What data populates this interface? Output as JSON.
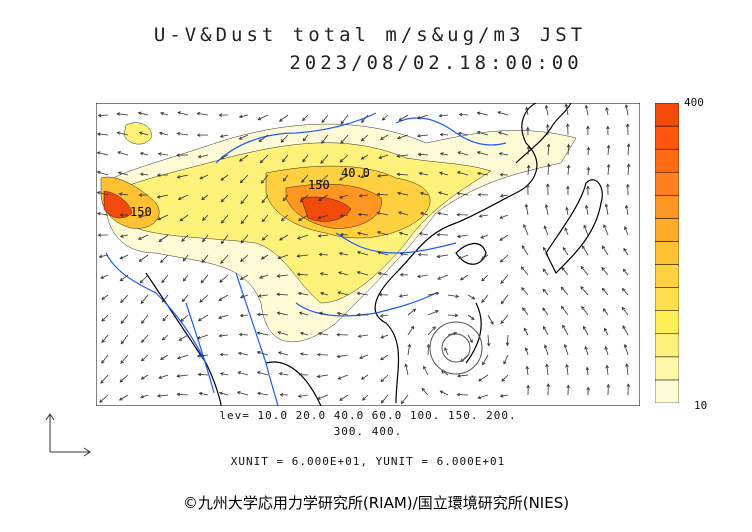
{
  "title_line1": "U-V&Dust total m/s&ug/m3 JST",
  "title_line2": "2023/08/02.18:00:00",
  "colorbar": {
    "max_label": "400",
    "min_label": "10",
    "colors": [
      "#fffbd6",
      "#fff7a8",
      "#fff27a",
      "#ffee55",
      "#ffe04a",
      "#ffd040",
      "#ffc033",
      "#ffab2a",
      "#ff9622",
      "#ff801c",
      "#ff6a14",
      "#ff550e",
      "#f24a0a"
    ]
  },
  "contour_labels": [
    "150",
    "40.0",
    "150"
  ],
  "levels_line1": "lev= 10.0 20.0 40.0 60.0 100. 150. 200.",
  "levels_line2": "300. 400.",
  "units_line": "XUNIT = 6.000E+01, YUNIT = 6.000E+01",
  "credit": "©九州大学応用力学研究所(RIAM)/国立環境研究所(NIES)",
  "colors": {
    "coast": "#000000",
    "river": "#1e5bff",
    "vector": "#333333"
  }
}
